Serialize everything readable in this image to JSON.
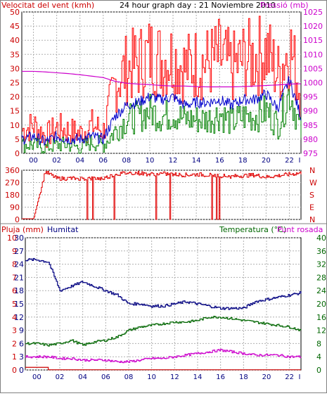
{
  "colors": {
    "wind": "#ff0000",
    "gust": "#ff0000",
    "wind_green": "#008000",
    "wind_blue": "#0000cc",
    "pressure": "#cc00cc",
    "direction": "#e00000",
    "rain": "#cc0000",
    "humidity": "#000080",
    "temperature": "#006600",
    "dewpoint": "#cc00cc",
    "grid": "#b0b0b0",
    "axis": "#000000"
  },
  "chart_data": [
    {
      "type": "line",
      "panel": "wind-pressure",
      "title": "24 hour graph day : 21 Noviembre 2010",
      "left_label": "Velocitat del vent (kmh)",
      "right_label": "Pressió (mb)",
      "ylim": [
        0,
        50
      ],
      "yticks": [
        "0",
        "5",
        "10",
        "15",
        "20",
        "25",
        "30",
        "35",
        "40",
        "45",
        "50"
      ],
      "y2lim": [
        975,
        1025
      ],
      "y2ticks": [
        "975",
        "980",
        "985",
        "990",
        "995",
        "1000",
        "1005",
        "1010",
        "1015",
        "1020",
        "1025"
      ],
      "xticks": [
        "00",
        "02",
        "04",
        "06",
        "08",
        "10",
        "12",
        "14",
        "16",
        "18",
        "20",
        "22"
      ],
      "x_end_mark": "I",
      "grid": true,
      "hours": [
        -1,
        0,
        1,
        2,
        3,
        4,
        5,
        6,
        7,
        8,
        9,
        10,
        11,
        12,
        13,
        14,
        15,
        16,
        17,
        18,
        19,
        20,
        21,
        22,
        23
      ],
      "series": [
        {
          "name": "Velocitat del vent (kmh)",
          "axis": "left",
          "values": [
            8,
            10,
            6,
            9,
            8,
            7,
            10,
            8,
            25,
            30,
            32,
            35,
            33,
            34,
            30,
            32,
            32,
            34,
            30,
            33,
            34,
            36,
            28,
            38,
            20
          ]
        },
        {
          "name": "",
          "axis": "left",
          "values": [
            5,
            6,
            4,
            6,
            5,
            5,
            6,
            5,
            13,
            17,
            18,
            20,
            19,
            20,
            17,
            18,
            18,
            19,
            17,
            19,
            19,
            21,
            16,
            26,
            13
          ]
        },
        {
          "name": "",
          "axis": "left",
          "values": [
            3,
            3,
            2,
            3,
            3,
            2,
            4,
            3,
            8,
            12,
            13,
            15,
            13,
            14,
            12,
            12,
            12,
            14,
            11,
            13,
            13,
            15,
            10,
            22,
            7
          ]
        },
        {
          "name": "Pressió (mb)",
          "axis": "right",
          "values": [
            1004,
            1004,
            1003.8,
            1003.5,
            1003.2,
            1002.8,
            1002.3,
            1001.8,
            1000.5,
            999.8,
            999.5,
            999.3,
            999,
            998.8,
            998.8,
            998.6,
            998.5,
            998.5,
            998.5,
            998.6,
            998.8,
            999,
            999.2,
            999.5,
            999.6
          ]
        }
      ]
    },
    {
      "type": "line",
      "panel": "wind-direction",
      "yticks": [
        "0",
        "90",
        "180",
        "270",
        "360"
      ],
      "ylim": [
        0,
        360
      ],
      "right_ticks": [
        "N",
        "W",
        "S",
        "E",
        "N"
      ],
      "grid": true,
      "series": [
        {
          "name": "",
          "values": [
            5,
            5,
            350,
            300,
            300,
            300,
            300,
            300,
            330,
            340,
            340,
            330,
            335,
            330,
            325,
            330,
            325,
            320,
            315,
            320,
            325,
            310,
            320,
            330,
            340
          ]
        }
      ]
    },
    {
      "type": "line",
      "panel": "rain-humidity-temp",
      "left_label": "Pluja (mm)",
      "mid_label": "Humitat",
      "right_label": "Temperatura (°C)",
      "right_label2": "Punt rosada",
      "left_ticks": [
        "0",
        "1",
        "2",
        "3",
        "4",
        "5",
        "6",
        "7",
        "8",
        "9",
        "10"
      ],
      "mid_ticks": [
        "0",
        "10",
        "20",
        "30",
        "40",
        "50",
        "60",
        "70",
        "80",
        "90",
        "100"
      ],
      "ylim": [
        0,
        30
      ],
      "yticks": [
        "0",
        "3",
        "6",
        "9",
        "12",
        "15",
        "18",
        "21",
        "24",
        "27",
        "30"
      ],
      "y2lim": [
        0,
        40
      ],
      "y2ticks": [
        "0",
        "4",
        "8",
        "12",
        "16",
        "20",
        "24",
        "28",
        "32",
        "36",
        "40"
      ],
      "xticks": [
        "00",
        "02",
        "04",
        "06",
        "08",
        "10",
        "12",
        "14",
        "16",
        "18",
        "20",
        "22"
      ],
      "x_end_mark": "I",
      "grid": true,
      "series": [
        {
          "name": "Pluja (mm)",
          "axis": "left",
          "values": [
            0.2,
            0.2,
            0,
            0,
            0,
            0,
            0,
            0,
            0,
            0,
            0,
            0,
            0,
            0,
            0,
            0,
            0,
            0,
            0,
            0,
            0,
            0,
            0,
            0,
            0
          ]
        },
        {
          "name": "Humitat",
          "axis": "left",
          "values": [
            25,
            25,
            24.5,
            18,
            19,
            20,
            19,
            18,
            17,
            15,
            15,
            14.5,
            14.5,
            15,
            15.5,
            15,
            14.5,
            14,
            14,
            14,
            15.5,
            16,
            16.5,
            17,
            17.5
          ]
        },
        {
          "name": "Temperatura (°C)",
          "axis": "right",
          "values": [
            8,
            8,
            7.5,
            8,
            9,
            7.5,
            8.5,
            9,
            10,
            12,
            13,
            13.5,
            14,
            14.5,
            14.5,
            15,
            16,
            16,
            15.5,
            15,
            14.5,
            14,
            13.5,
            13,
            12
          ]
        },
        {
          "name": "Punt rosada",
          "axis": "right",
          "values": [
            4,
            4,
            4,
            3.5,
            3.5,
            3,
            3,
            3,
            2.5,
            2.5,
            3,
            3.5,
            3.5,
            4,
            4.5,
            5,
            5.5,
            6,
            5.5,
            5,
            4.5,
            4.5,
            4.5,
            4,
            4
          ]
        }
      ]
    }
  ]
}
